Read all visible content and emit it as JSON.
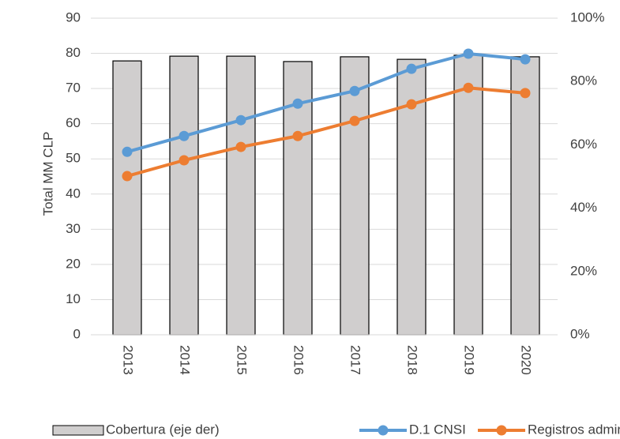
{
  "chart_data": {
    "type": "bar+line",
    "y_label": "Total MM CLP",
    "categories": [
      "2013",
      "2014",
      "2015",
      "2016",
      "2017",
      "2018",
      "2019",
      "2020"
    ],
    "series": [
      {
        "name": "Cobertura (eje der)",
        "type": "bar",
        "axis": "y2",
        "color": "#d0cece",
        "values": [
          86.5,
          88.0,
          88.0,
          86.3,
          87.8,
          87.0,
          88.3,
          87.8
        ]
      },
      {
        "name": "D.1 CNSI",
        "type": "line",
        "color": "#5b9bd5",
        "values": [
          52,
          56.5,
          61,
          65.7,
          69.3,
          75.6,
          79.9,
          78.3
        ]
      },
      {
        "name": "Registros administrativos",
        "type": "line",
        "color": "#ed7d31",
        "values": [
          45.1,
          49.6,
          53.4,
          56.5,
          60.8,
          65.5,
          70.2,
          68.7
        ]
      }
    ],
    "ylim": [
      0,
      90
    ],
    "yticks": [
      0,
      10,
      20,
      30,
      40,
      50,
      60,
      70,
      80,
      90
    ],
    "y2lim": [
      0,
      100
    ],
    "y2ticks": [
      {
        "value": 0,
        "label": "0%"
      },
      {
        "value": 20,
        "label": "20%"
      },
      {
        "value": 40,
        "label": "40%"
      },
      {
        "value": 60,
        "label": "60%"
      },
      {
        "value": 80,
        "label": "80%"
      },
      {
        "value": 100,
        "label": "100%"
      }
    ],
    "grid": true,
    "legend": "bottom"
  }
}
